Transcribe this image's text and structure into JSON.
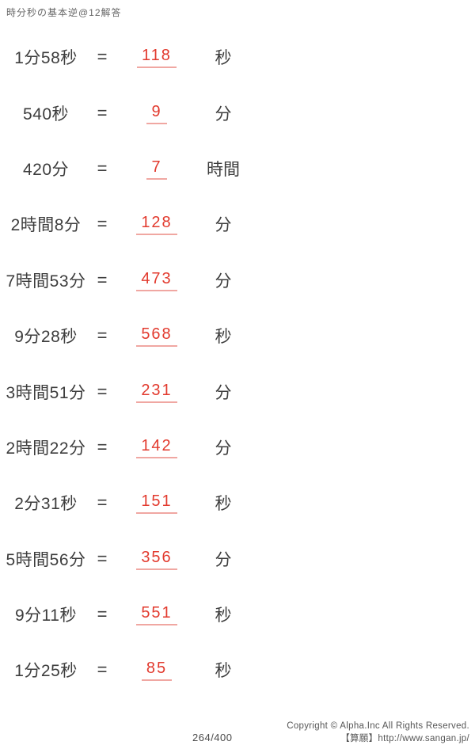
{
  "page": {
    "title": "時分秒の基本逆@12解答",
    "footer": {
      "page_number": "264/400",
      "copyright": "Copyright © Alpha.Inc All Rights Reserved.",
      "site": "【算願】http://www.sangan.jp/"
    },
    "colors": {
      "text": "#3d3d3d",
      "answer_red": "#e23a2e",
      "answer_underline": "#f0a7a2",
      "muted": "#666666"
    }
  },
  "problems": [
    {
      "expression": "1分58秒",
      "equals": "=",
      "answer": "118",
      "unit": "秒"
    },
    {
      "expression": "540秒",
      "equals": "=",
      "answer": "9",
      "unit": "分"
    },
    {
      "expression": "420分",
      "equals": "=",
      "answer": "7",
      "unit": "時間"
    },
    {
      "expression": "2時間8分",
      "equals": "=",
      "answer": "128",
      "unit": "分"
    },
    {
      "expression": "7時間53分",
      "equals": "=",
      "answer": "473",
      "unit": "分"
    },
    {
      "expression": "9分28秒",
      "equals": "=",
      "answer": "568",
      "unit": "秒"
    },
    {
      "expression": "3時間51分",
      "equals": "=",
      "answer": "231",
      "unit": "分"
    },
    {
      "expression": "2時間22分",
      "equals": "=",
      "answer": "142",
      "unit": "分"
    },
    {
      "expression": "2分31秒",
      "equals": "=",
      "answer": "151",
      "unit": "秒"
    },
    {
      "expression": "5時間56分",
      "equals": "=",
      "answer": "356",
      "unit": "分"
    },
    {
      "expression": "9分11秒",
      "equals": "=",
      "answer": "551",
      "unit": "秒"
    },
    {
      "expression": "1分25秒",
      "equals": "=",
      "answer": "85",
      "unit": "秒"
    }
  ]
}
